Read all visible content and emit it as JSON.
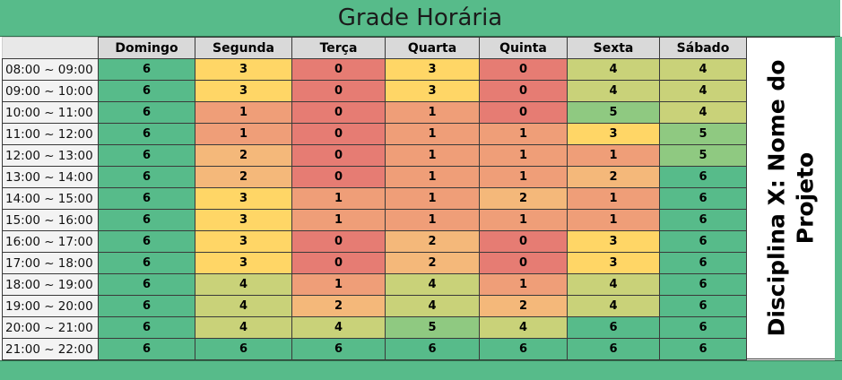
{
  "sheet": {
    "title": "Grade Horária",
    "side_label_line1": "Disciplina X: Nome do",
    "side_label_line2": "Projeto",
    "days": [
      "Domingo",
      "Segunda",
      "Terça",
      "Quarta",
      "Quinta",
      "Sexta",
      "Sábado"
    ],
    "rows": [
      {
        "time": "08:00 ~ 09:00",
        "values": [
          6,
          3,
          0,
          3,
          0,
          4,
          4
        ]
      },
      {
        "time": "09:00 ~ 10:00",
        "values": [
          6,
          3,
          0,
          3,
          0,
          4,
          4
        ]
      },
      {
        "time": "10:00 ~ 11:00",
        "values": [
          6,
          1,
          0,
          1,
          0,
          5,
          4
        ]
      },
      {
        "time": "11:00 ~ 12:00",
        "values": [
          6,
          1,
          0,
          1,
          1,
          3,
          5
        ]
      },
      {
        "time": "12:00 ~ 13:00",
        "values": [
          6,
          2,
          0,
          1,
          1,
          1,
          5
        ]
      },
      {
        "time": "13:00 ~ 14:00",
        "values": [
          6,
          2,
          0,
          1,
          1,
          2,
          6
        ]
      },
      {
        "time": "14:00 ~ 15:00",
        "values": [
          6,
          3,
          1,
          1,
          2,
          1,
          6
        ]
      },
      {
        "time": "15:00 ~ 16:00",
        "values": [
          6,
          3,
          1,
          1,
          1,
          1,
          6
        ]
      },
      {
        "time": "16:00 ~ 17:00",
        "values": [
          6,
          3,
          0,
          2,
          0,
          3,
          6
        ]
      },
      {
        "time": "17:00 ~ 18:00",
        "values": [
          6,
          3,
          0,
          2,
          0,
          3,
          6
        ]
      },
      {
        "time": "18:00 ~ 19:00",
        "values": [
          6,
          4,
          1,
          4,
          1,
          4,
          6
        ]
      },
      {
        "time": "19:00 ~ 20:00",
        "values": [
          6,
          4,
          2,
          4,
          2,
          4,
          6
        ]
      },
      {
        "time": "20:00 ~ 21:00",
        "values": [
          6,
          4,
          4,
          5,
          4,
          6,
          6
        ]
      },
      {
        "time": "21:00 ~ 22:00",
        "values": [
          6,
          6,
          6,
          6,
          6,
          6,
          6
        ]
      }
    ]
  },
  "colors": {
    "header_band": "#57bb8a",
    "scale": {
      "0": "#e67c73",
      "1": "#ef9e78",
      "2": "#f4b87a",
      "3": "#ffd666",
      "4": "#c9d279",
      "5": "#8fc981",
      "6": "#57bb8a"
    }
  }
}
